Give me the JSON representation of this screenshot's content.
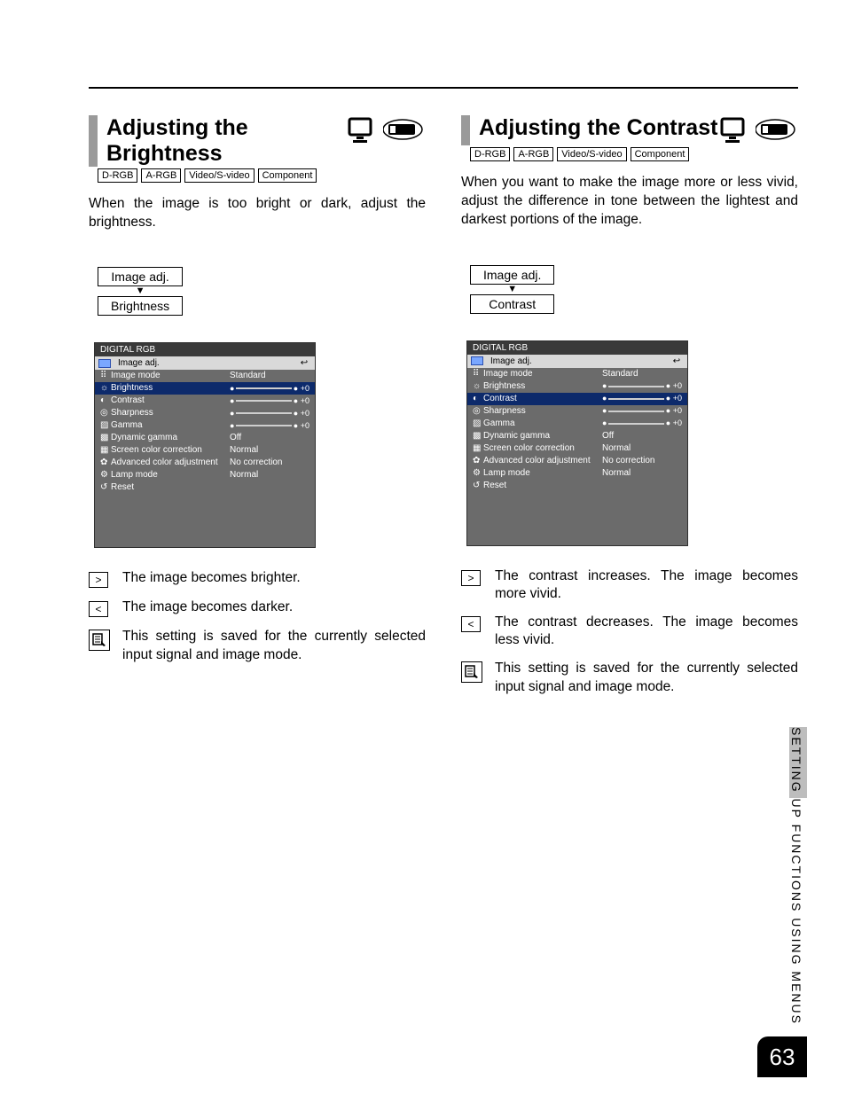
{
  "page_number": "63",
  "side_label": "SETTING UP FUNCTIONS USING MENUS",
  "badges": [
    "D-RGB",
    "A-RGB",
    "Video/S-video",
    "Component"
  ],
  "crumb_parent": "Image adj.",
  "osd": {
    "title": "DIGITAL RGB",
    "tab_label": "Image adj.",
    "rows": [
      {
        "icon": "⠿",
        "label": "Image mode",
        "type": "value",
        "value": "Standard"
      },
      {
        "icon": "☼",
        "label": "Brightness",
        "type": "slider",
        "value": "+0"
      },
      {
        "icon": "◐",
        "label": "Contrast",
        "type": "slider",
        "value": "+0"
      },
      {
        "icon": "◎",
        "label": "Sharpness",
        "type": "slider",
        "value": "+0"
      },
      {
        "icon": "▨",
        "label": "Gamma",
        "type": "slider",
        "value": "+0"
      },
      {
        "icon": "▩",
        "label": "Dynamic gamma",
        "type": "value",
        "value": "Off"
      },
      {
        "icon": "▦",
        "label": "Screen color correction",
        "type": "value",
        "value": "Normal"
      },
      {
        "icon": "✿",
        "label": "Advanced color adjustment",
        "type": "value",
        "value": "No correction"
      },
      {
        "icon": "⚙",
        "label": "Lamp mode",
        "type": "value",
        "value": "Normal"
      },
      {
        "icon": "↺",
        "label": "Reset",
        "type": "none",
        "value": ""
      }
    ]
  },
  "left": {
    "title": "Adjusting the Brightness",
    "intro": "When the image is too bright or dark, adjust the brightness.",
    "crumb_child": "Brightness",
    "highlight_row": 1,
    "key_more": ">",
    "key_less": "<",
    "more_text": "The image becomes brighter.",
    "less_text": "The image becomes darker.",
    "note": "This setting is saved for the currently selected input signal and image mode."
  },
  "right": {
    "title": "Adjusting the Contrast",
    "intro": "When you want to make the image more or less vivid, adjust the difference in tone between the lightest and darkest portions of the image.",
    "crumb_child": "Contrast",
    "highlight_row": 2,
    "key_more": ">",
    "key_less": "<",
    "more_text": "The contrast increases. The image becomes more vivid.",
    "less_text": "The contrast decreases. The image becomes less vivid.",
    "note": "This setting is saved for the currently selected input signal and image mode."
  }
}
